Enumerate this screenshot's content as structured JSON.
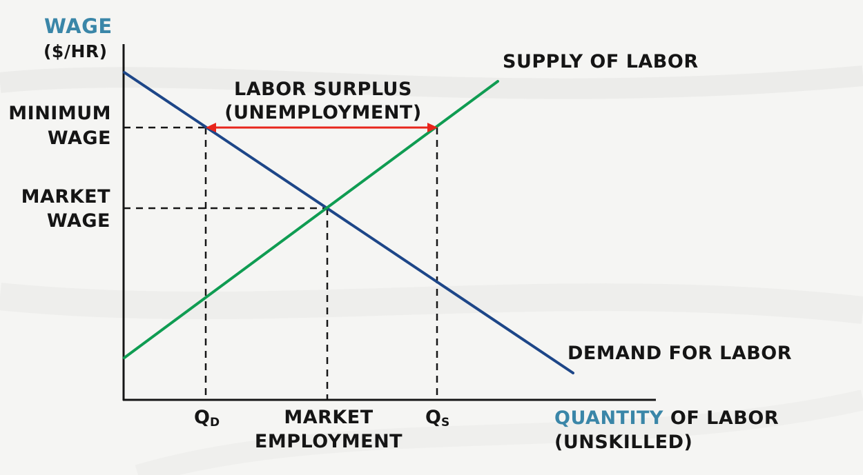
{
  "y_axis": {
    "title_word": "WAGE",
    "title_unit": "($/HR)"
  },
  "x_axis": {
    "title_word": "QUANTITY",
    "title_rest": "OF LABOR",
    "title_sub": "(UNSKILLED)"
  },
  "levels": {
    "minimum_wage": [
      "MINIMUM",
      "WAGE"
    ],
    "market_wage": [
      "MARKET",
      "WAGE"
    ]
  },
  "quantities": {
    "qd": {
      "letter": "Q",
      "sub": "D"
    },
    "qs": {
      "letter": "Q",
      "sub": "S"
    },
    "market_employment": [
      "MARKET",
      "EMPLOYMENT"
    ]
  },
  "curves": {
    "supply": {
      "name": "SUPPLY OF LABOR",
      "color": "#0f9c52"
    },
    "demand": {
      "name": "DEMAND FOR LABOR",
      "color": "#1d4688"
    }
  },
  "surplus": {
    "label": [
      "LABOR SURPLUS",
      "(UNEMPLOYMENT)"
    ],
    "color": "#e8251b"
  },
  "colors": {
    "axis_title_accent": "#3a86a8",
    "ink": "#151515"
  }
}
